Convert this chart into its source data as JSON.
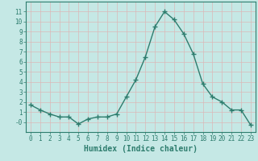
{
  "x": [
    0,
    1,
    2,
    3,
    4,
    5,
    6,
    7,
    8,
    9,
    10,
    11,
    12,
    13,
    14,
    15,
    16,
    17,
    18,
    19,
    20,
    21,
    22,
    23
  ],
  "y": [
    1.7,
    1.2,
    0.8,
    0.5,
    0.5,
    -0.2,
    0.3,
    0.5,
    0.5,
    0.8,
    2.5,
    4.2,
    6.5,
    9.5,
    11.0,
    10.2,
    8.8,
    6.8,
    3.8,
    2.5,
    2.0,
    1.2,
    1.2,
    -0.3
  ],
  "line_color": "#2e7d6e",
  "marker": "+",
  "marker_size": 4,
  "linewidth": 1.0,
  "xlabel": "Humidex (Indice chaleur)",
  "ylim": [
    -1.0,
    12.0
  ],
  "xlim": [
    -0.5,
    23.5
  ],
  "yticks": [
    0,
    1,
    2,
    3,
    4,
    5,
    6,
    7,
    8,
    9,
    10,
    11
  ],
  "ytick_labels": [
    "-0",
    "1",
    "2",
    "3",
    "4",
    "5",
    "6",
    "7",
    "8",
    "9",
    "10",
    "11"
  ],
  "xticks": [
    0,
    1,
    2,
    3,
    4,
    5,
    6,
    7,
    8,
    9,
    10,
    11,
    12,
    13,
    14,
    15,
    16,
    17,
    18,
    19,
    20,
    21,
    22,
    23
  ],
  "bg_color": "#c5e8e5",
  "grid_color_minor": "#dbb8b8",
  "grid_color_major": "#ffffff",
  "axis_color": "#2e7d6e",
  "tick_color": "#2e7d6e",
  "label_color": "#2e7d6e"
}
